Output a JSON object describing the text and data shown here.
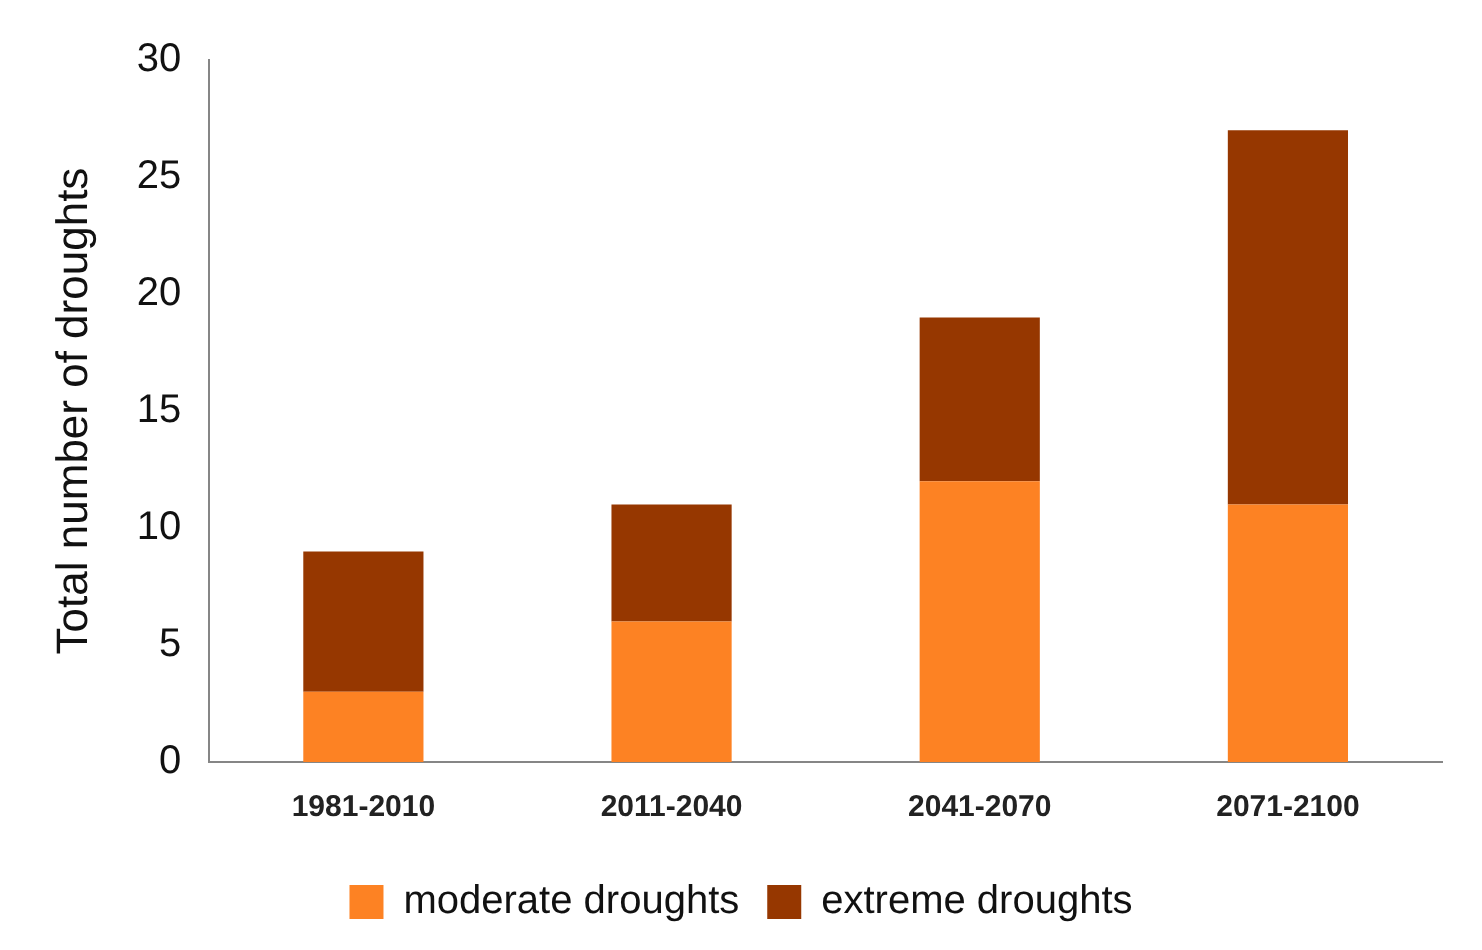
{
  "chart_data": {
    "type": "bar",
    "ylabel": "Total number of droughts",
    "categories": [
      "1981-2010",
      "2011-2040",
      "2041-2070",
      "2071-2100"
    ],
    "stacked": true,
    "series": [
      {
        "name": "moderate droughts",
        "color": "#fd8223",
        "values": [
          3,
          6,
          12,
          11
        ]
      },
      {
        "name": "extreme droughts",
        "color": "#963700",
        "values": [
          6,
          5,
          7,
          16
        ]
      }
    ],
    "ylim": [
      0,
      30
    ],
    "yticks": [
      0,
      5,
      10,
      15,
      20,
      25,
      30
    ],
    "grid": false,
    "legend": "bottom"
  }
}
